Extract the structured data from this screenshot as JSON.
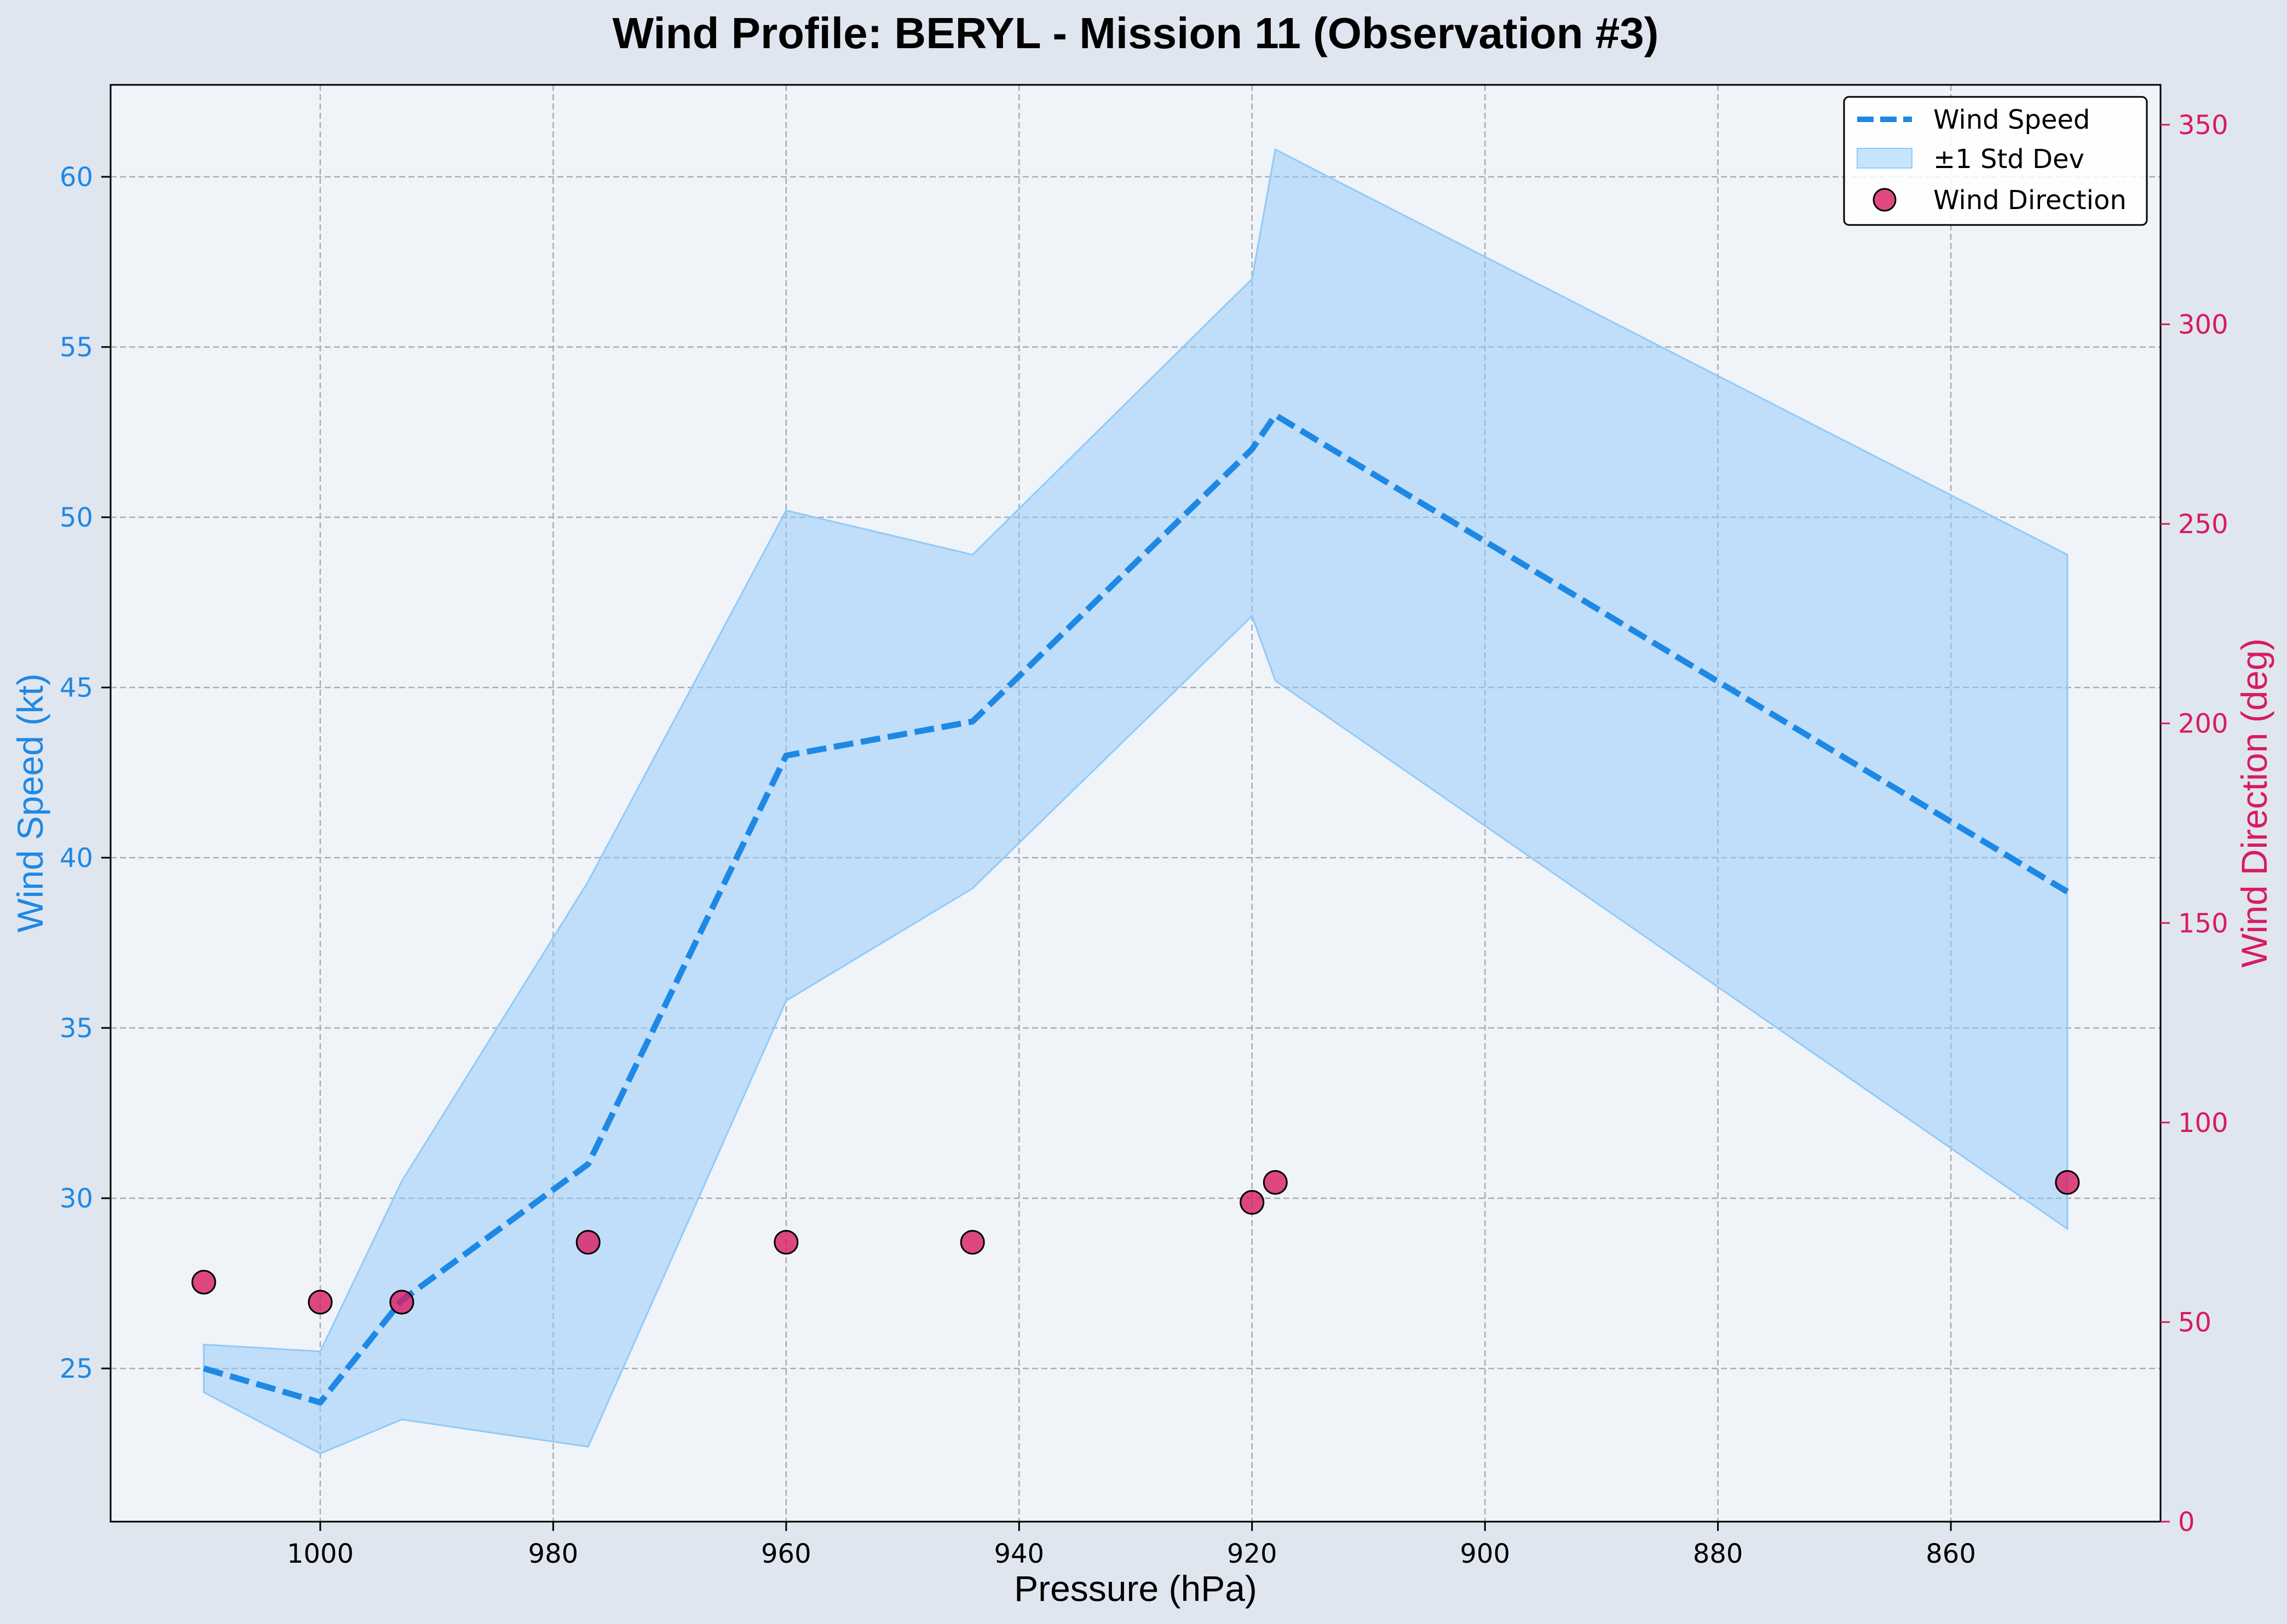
{
  "chart_data": {
    "type": "line",
    "title": "Wind Profile: BERYL - Mission 11 (Observation #3)",
    "xlabel": "Pressure (hPa)",
    "ylabel": "Wind Speed (kt)",
    "y2label": "Wind Direction (deg)",
    "xlim": [
      1018,
      842
    ],
    "x_inverted": true,
    "ylim": [
      20.5,
      62.7
    ],
    "y2lim": [
      0,
      360
    ],
    "x_ticks": [
      1000,
      980,
      960,
      940,
      920,
      900,
      880,
      860
    ],
    "y_ticks": [
      25,
      30,
      35,
      40,
      45,
      50,
      55,
      60
    ],
    "y2_ticks": [
      0,
      50,
      100,
      150,
      200,
      250,
      300,
      350
    ],
    "grid": true,
    "legend_position": "top-right",
    "colors": {
      "speed": "#1e88e5",
      "band": "#90caf9",
      "direction": "#d81b60",
      "direction_axis": "#d81b60",
      "background": "#f0f3f8",
      "figure": "#e0e6ef",
      "grid": "#a8adb3"
    },
    "series": [
      {
        "name": "Wind Speed",
        "kind": "line",
        "x": [
          1010,
          1000,
          993,
          977,
          960,
          944,
          920,
          918,
          850
        ],
        "values": [
          25,
          24,
          27,
          31,
          43,
          44,
          52,
          53,
          39
        ]
      },
      {
        "name": "±1 Std Dev",
        "kind": "band",
        "x": [
          1010,
          1000,
          993,
          977,
          960,
          944,
          920,
          918,
          850
        ],
        "lower": [
          24.3,
          22.5,
          23.5,
          22.7,
          35.8,
          39.1,
          47.1,
          45.2,
          29.1
        ],
        "upper": [
          25.7,
          25.5,
          30.5,
          39.3,
          50.2,
          48.9,
          57.0,
          60.8,
          48.9
        ]
      },
      {
        "name": "Wind Direction",
        "kind": "scatter",
        "axis": "right",
        "x": [
          1010,
          1000,
          993,
          977,
          960,
          944,
          920,
          918,
          850
        ],
        "values": [
          60,
          55,
          55,
          70,
          70,
          70,
          80,
          85,
          85
        ]
      }
    ]
  }
}
